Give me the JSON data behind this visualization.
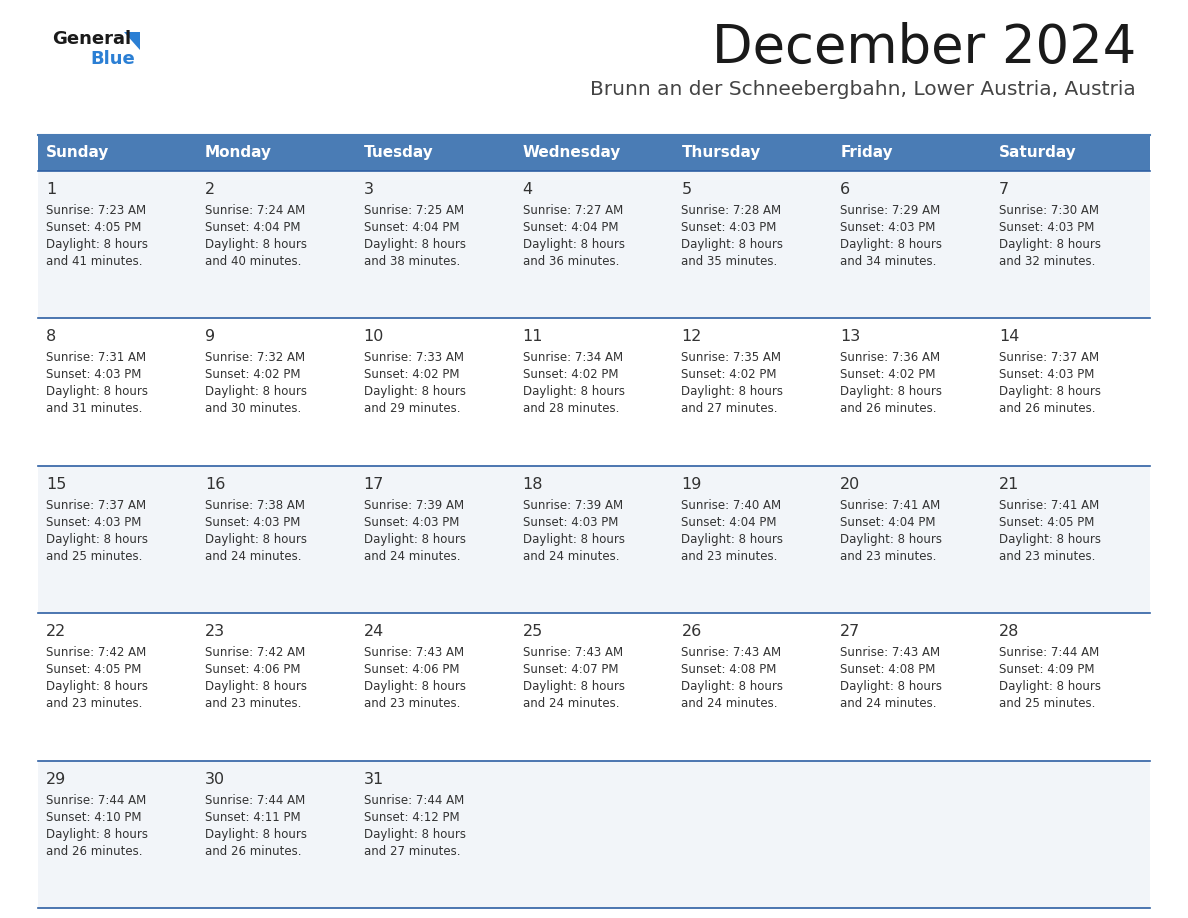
{
  "title": "December 2024",
  "subtitle": "Brunn an der Schneebergbahn, Lower Austria, Austria",
  "header_color": "#4a7cb5",
  "header_text_color": "#ffffff",
  "day_names": [
    "Sunday",
    "Monday",
    "Tuesday",
    "Wednesday",
    "Thursday",
    "Friday",
    "Saturday"
  ],
  "background_color": "#ffffff",
  "cell_bg_light": "#f2f5f9",
  "cell_bg_white": "#ffffff",
  "divider_color": "#2e5fa3",
  "text_color": "#333333",
  "logo_color": "#2b7fd4",
  "logo_black": "#1a1a1a",
  "days": [
    {
      "date": 1,
      "dow": 0,
      "sunrise": "7:23 AM",
      "sunset": "4:05 PM",
      "dl_min": "41"
    },
    {
      "date": 2,
      "dow": 1,
      "sunrise": "7:24 AM",
      "sunset": "4:04 PM",
      "dl_min": "40"
    },
    {
      "date": 3,
      "dow": 2,
      "sunrise": "7:25 AM",
      "sunset": "4:04 PM",
      "dl_min": "38"
    },
    {
      "date": 4,
      "dow": 3,
      "sunrise": "7:27 AM",
      "sunset": "4:04 PM",
      "dl_min": "36"
    },
    {
      "date": 5,
      "dow": 4,
      "sunrise": "7:28 AM",
      "sunset": "4:03 PM",
      "dl_min": "35"
    },
    {
      "date": 6,
      "dow": 5,
      "sunrise": "7:29 AM",
      "sunset": "4:03 PM",
      "dl_min": "34"
    },
    {
      "date": 7,
      "dow": 6,
      "sunrise": "7:30 AM",
      "sunset": "4:03 PM",
      "dl_min": "32"
    },
    {
      "date": 8,
      "dow": 0,
      "sunrise": "7:31 AM",
      "sunset": "4:03 PM",
      "dl_min": "31"
    },
    {
      "date": 9,
      "dow": 1,
      "sunrise": "7:32 AM",
      "sunset": "4:02 PM",
      "dl_min": "30"
    },
    {
      "date": 10,
      "dow": 2,
      "sunrise": "7:33 AM",
      "sunset": "4:02 PM",
      "dl_min": "29"
    },
    {
      "date": 11,
      "dow": 3,
      "sunrise": "7:34 AM",
      "sunset": "4:02 PM",
      "dl_min": "28"
    },
    {
      "date": 12,
      "dow": 4,
      "sunrise": "7:35 AM",
      "sunset": "4:02 PM",
      "dl_min": "27"
    },
    {
      "date": 13,
      "dow": 5,
      "sunrise": "7:36 AM",
      "sunset": "4:02 PM",
      "dl_min": "26"
    },
    {
      "date": 14,
      "dow": 6,
      "sunrise": "7:37 AM",
      "sunset": "4:03 PM",
      "dl_min": "26"
    },
    {
      "date": 15,
      "dow": 0,
      "sunrise": "7:37 AM",
      "sunset": "4:03 PM",
      "dl_min": "25"
    },
    {
      "date": 16,
      "dow": 1,
      "sunrise": "7:38 AM",
      "sunset": "4:03 PM",
      "dl_min": "24"
    },
    {
      "date": 17,
      "dow": 2,
      "sunrise": "7:39 AM",
      "sunset": "4:03 PM",
      "dl_min": "24"
    },
    {
      "date": 18,
      "dow": 3,
      "sunrise": "7:39 AM",
      "sunset": "4:03 PM",
      "dl_min": "24"
    },
    {
      "date": 19,
      "dow": 4,
      "sunrise": "7:40 AM",
      "sunset": "4:04 PM",
      "dl_min": "23"
    },
    {
      "date": 20,
      "dow": 5,
      "sunrise": "7:41 AM",
      "sunset": "4:04 PM",
      "dl_min": "23"
    },
    {
      "date": 21,
      "dow": 6,
      "sunrise": "7:41 AM",
      "sunset": "4:05 PM",
      "dl_min": "23"
    },
    {
      "date": 22,
      "dow": 0,
      "sunrise": "7:42 AM",
      "sunset": "4:05 PM",
      "dl_min": "23"
    },
    {
      "date": 23,
      "dow": 1,
      "sunrise": "7:42 AM",
      "sunset": "4:06 PM",
      "dl_min": "23"
    },
    {
      "date": 24,
      "dow": 2,
      "sunrise": "7:43 AM",
      "sunset": "4:06 PM",
      "dl_min": "23"
    },
    {
      "date": 25,
      "dow": 3,
      "sunrise": "7:43 AM",
      "sunset": "4:07 PM",
      "dl_min": "24"
    },
    {
      "date": 26,
      "dow": 4,
      "sunrise": "7:43 AM",
      "sunset": "4:08 PM",
      "dl_min": "24"
    },
    {
      "date": 27,
      "dow": 5,
      "sunrise": "7:43 AM",
      "sunset": "4:08 PM",
      "dl_min": "24"
    },
    {
      "date": 28,
      "dow": 6,
      "sunrise": "7:44 AM",
      "sunset": "4:09 PM",
      "dl_min": "25"
    },
    {
      "date": 29,
      "dow": 0,
      "sunrise": "7:44 AM",
      "sunset": "4:10 PM",
      "dl_min": "26"
    },
    {
      "date": 30,
      "dow": 1,
      "sunrise": "7:44 AM",
      "sunset": "4:11 PM",
      "dl_min": "26"
    },
    {
      "date": 31,
      "dow": 2,
      "sunrise": "7:44 AM",
      "sunset": "4:12 PM",
      "dl_min": "27"
    }
  ]
}
